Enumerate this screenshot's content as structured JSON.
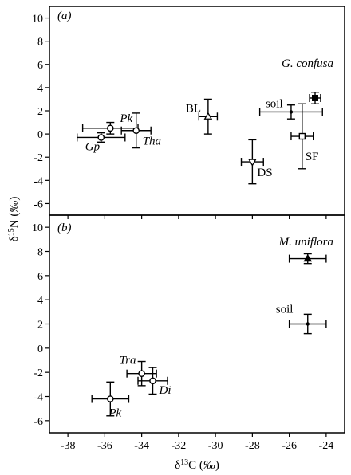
{
  "chart_data": [
    {
      "type": "scatter",
      "panel": "(a)",
      "species": "G. confusa",
      "ylabel": "δ15N (‰)",
      "xlim": [
        -39,
        -23
      ],
      "ylim": [
        -7,
        11
      ],
      "xticks": [
        -38,
        -36,
        -34,
        -32,
        -30,
        -28,
        -26,
        -24
      ],
      "yticks": [
        -6,
        -4,
        -2,
        0,
        2,
        4,
        6,
        8,
        10
      ],
      "points": [
        {
          "label": "Gp",
          "italic": true,
          "marker": "circle-open",
          "x": -36.2,
          "y": -0.3,
          "xerr": 1.3,
          "yerr": 0.4
        },
        {
          "label": "Pk",
          "italic": true,
          "marker": "circle-open",
          "x": -35.7,
          "y": 0.5,
          "xerr": 1.5,
          "yerr": 0.5
        },
        {
          "label": "Tha",
          "italic": true,
          "marker": "circle-open",
          "x": -34.3,
          "y": 0.3,
          "xerr": 0.8,
          "yerr": 1.5
        },
        {
          "label": "BL",
          "italic": false,
          "marker": "triangle-up-open",
          "x": -30.4,
          "y": 1.5,
          "xerr": 0.5,
          "yerr": 1.5
        },
        {
          "label": "DS",
          "italic": false,
          "marker": "triangle-down-open",
          "x": -28.0,
          "y": -2.4,
          "xerr": 0.6,
          "yerr": 1.9
        },
        {
          "label": "soil",
          "italic": false,
          "marker": "dot",
          "x": -25.9,
          "y": 1.9,
          "xerr": 1.7,
          "yerr": 0.6
        },
        {
          "label": "SF",
          "italic": false,
          "marker": "square-open",
          "x": -25.3,
          "y": -0.2,
          "xerr": 0.6,
          "yerr": 2.8
        },
        {
          "label": "",
          "italic": false,
          "marker": "square-filled",
          "x": -24.6,
          "y": 3.1,
          "xerr": 0.3,
          "yerr": 0.5
        }
      ]
    },
    {
      "type": "scatter",
      "panel": "(b)",
      "species": "M. uniflora",
      "xlabel": "δ13C (‰)",
      "xlim": [
        -39,
        -23
      ],
      "ylim": [
        -7,
        11
      ],
      "xticks": [
        -38,
        -36,
        -34,
        -32,
        -30,
        -28,
        -26,
        -24
      ],
      "yticks": [
        -6,
        -4,
        -2,
        0,
        2,
        4,
        6,
        8,
        10
      ],
      "points": [
        {
          "label": "Tra",
          "italic": true,
          "marker": "circle-open",
          "x": -34.0,
          "y": -2.1,
          "xerr": 0.8,
          "yerr": 1.0
        },
        {
          "label": "Di",
          "italic": true,
          "marker": "circle-open",
          "x": -33.4,
          "y": -2.7,
          "xerr": 0.8,
          "yerr": 1.1
        },
        {
          "label": "Pk",
          "italic": true,
          "marker": "circle-open",
          "x": -35.7,
          "y": -4.2,
          "xerr": 1.0,
          "yerr": 1.4
        },
        {
          "label": "soil",
          "italic": false,
          "marker": "dot",
          "x": -25.0,
          "y": 2.0,
          "xerr": 1.0,
          "yerr": 0.8
        },
        {
          "label": "",
          "italic": false,
          "marker": "triangle-up-filled",
          "x": -25.0,
          "y": 7.4,
          "xerr": 1.0,
          "yerr": 0.4
        }
      ]
    }
  ]
}
